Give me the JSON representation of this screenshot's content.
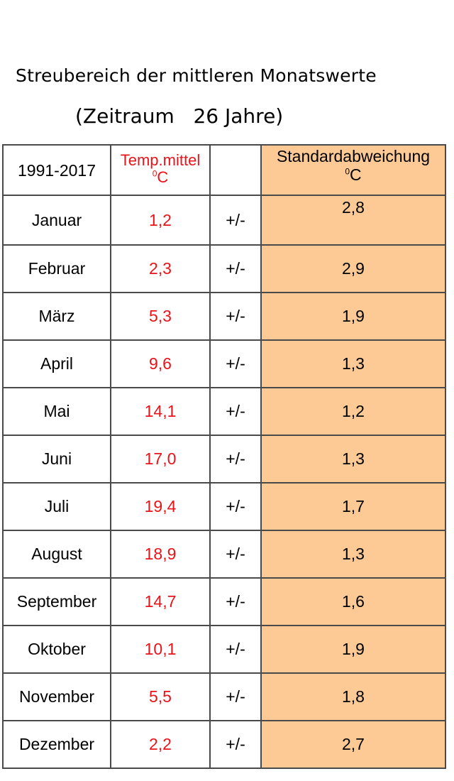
{
  "title": "Streubereich der mittleren Monatswerte",
  "subtitle": "(Zeitraum   26 Jahre)",
  "table": {
    "header": {
      "period": "1991-2017",
      "temp_label": "Temp.mittel",
      "temp_unit_sup": "0",
      "temp_unit": "C",
      "sd_label": "Standardabweichung",
      "sd_unit_sup": "0",
      "sd_unit": "C"
    },
    "plusminus": "+/-",
    "rows": [
      {
        "month": "Januar",
        "temp": "1,2",
        "pm": "+/-",
        "sd": "2,8"
      },
      {
        "month": "Februar",
        "temp": "2,3",
        "pm": "+/-",
        "sd": "2,9"
      },
      {
        "month": "März",
        "temp": "5,3",
        "pm": "+/-",
        "sd": "1,9"
      },
      {
        "month": "April",
        "temp": "9,6",
        "pm": "+/-",
        "sd": "1,3"
      },
      {
        "month": "Mai",
        "temp": "14,1",
        "pm": "+/-",
        "sd": "1,2"
      },
      {
        "month": "Juni",
        "temp": "17,0",
        "pm": "+/-",
        "sd": "1,3"
      },
      {
        "month": "Juli",
        "temp": "19,4",
        "pm": "+/-",
        "sd": "1,7"
      },
      {
        "month": "August",
        "temp": "18,9",
        "pm": "+/-",
        "sd": "1,3"
      },
      {
        "month": "September",
        "temp": "14,7",
        "pm": "+/-",
        "sd": "1,6"
      },
      {
        "month": "Oktober",
        "temp": "10,1",
        "pm": "+/-",
        "sd": "1,9"
      },
      {
        "month": "November",
        "temp": "5,5",
        "pm": "+/-",
        "sd": "1,8"
      },
      {
        "month": "Dezember",
        "temp": "2,2",
        "pm": "+/-",
        "sd": "2,7"
      }
    ]
  },
  "colors": {
    "temp_text": "#e8141a",
    "sd_background": "#fdca96",
    "border": "#4a4a4a"
  }
}
